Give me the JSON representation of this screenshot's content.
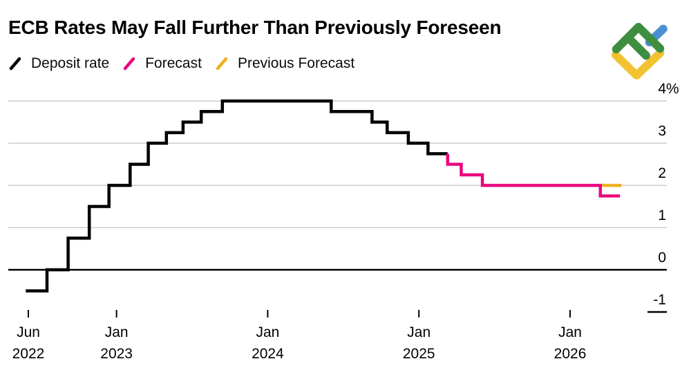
{
  "header": {
    "title": "ECB Rates May Fall Further Than Previously Foreseen"
  },
  "legend": {
    "items": [
      {
        "label": "Deposit rate",
        "color": "#000000"
      },
      {
        "label": "Forecast",
        "color": "#e9067f"
      },
      {
        "label": "Previous Forecast",
        "color": "#efb01e"
      }
    ]
  },
  "logo": {
    "name": "LiteFinance",
    "green": "#3e8e41",
    "blue": "#4a90d2",
    "yellow": "#f2c230"
  },
  "chart_data": {
    "type": "line",
    "subtype": "step",
    "title": "ECB Rates May Fall Further Than Previously Foreseen",
    "unit": "%",
    "ylim": [
      -1,
      4
    ],
    "grid": "horizontal",
    "legend_position": "top-left",
    "y_ticks": [
      {
        "v": 4,
        "label": "4%"
      },
      {
        "v": 3,
        "label": "3"
      },
      {
        "v": 2,
        "label": "2"
      },
      {
        "v": 1,
        "label": "1"
      },
      {
        "v": 0,
        "label": "0"
      },
      {
        "v": -1,
        "label": "-1"
      }
    ],
    "x_ticks": [
      {
        "t": 2022.4167,
        "month": "Jun",
        "year": "2022"
      },
      {
        "t": 2023.0,
        "month": "Jan",
        "year": "2023"
      },
      {
        "t": 2024.0,
        "month": "Jan",
        "year": "2024"
      },
      {
        "t": 2025.0,
        "month": "Jan",
        "year": "2025"
      },
      {
        "t": 2026.0,
        "month": "Jan",
        "year": "2026"
      }
    ],
    "series": [
      {
        "name": "Deposit rate",
        "color": "#000000",
        "steps": [
          [
            2022.4,
            -0.5
          ],
          [
            2022.54,
            0.0
          ],
          [
            2022.68,
            0.75
          ],
          [
            2022.82,
            1.5
          ],
          [
            2022.95,
            2.0
          ],
          [
            2023.09,
            2.5
          ],
          [
            2023.21,
            3.0
          ],
          [
            2023.33,
            3.25
          ],
          [
            2023.44,
            3.5
          ],
          [
            2023.56,
            3.75
          ],
          [
            2023.7,
            4.0
          ],
          [
            2024.42,
            3.75
          ],
          [
            2024.69,
            3.5
          ],
          [
            2024.79,
            3.25
          ],
          [
            2024.93,
            3.0
          ],
          [
            2025.06,
            2.75
          ]
        ],
        "end_t": 2025.19
      },
      {
        "name": "Forecast",
        "color": "#e9067f",
        "starts_from": [
          2025.19,
          2.75
        ],
        "steps": [
          [
            2025.19,
            2.5
          ],
          [
            2025.28,
            2.25
          ],
          [
            2025.42,
            2.0
          ],
          [
            2026.2,
            1.75
          ]
        ],
        "end_t": 2026.33
      },
      {
        "name": "Previous Forecast",
        "color": "#efb01e",
        "steps": [
          [
            2026.21,
            2.0
          ]
        ],
        "end_t": 2026.34
      }
    ]
  }
}
